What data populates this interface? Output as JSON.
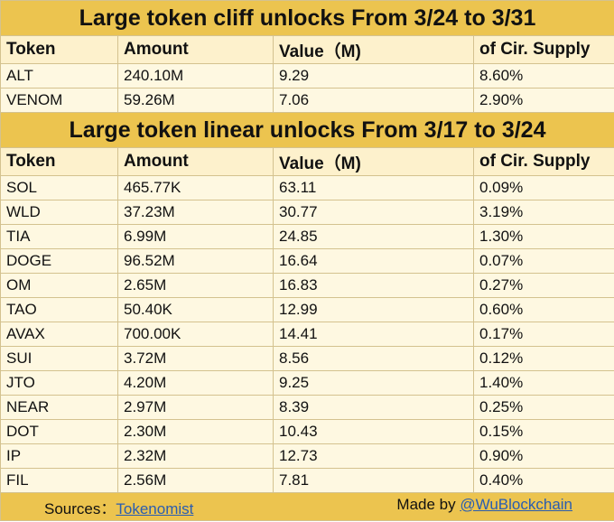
{
  "cliff": {
    "title": "Large token cliff unlocks From  3/24 to 3/31",
    "headers": [
      "Token",
      "Amount",
      "Value（M)",
      "of Cir. Supply"
    ],
    "rows": [
      [
        "ALT",
        "240.10M",
        "9.29",
        "8.60%"
      ],
      [
        "VENOM",
        "59.26M",
        "7.06",
        "2.90%"
      ]
    ]
  },
  "linear": {
    "title": "Large token linear unlocks From  3/17 to 3/24",
    "headers": [
      "Token",
      "Amount",
      "Value（M)",
      "of Cir. Supply"
    ],
    "rows": [
      [
        "SOL",
        "465.77K",
        "63.11",
        "0.09%"
      ],
      [
        "WLD",
        "37.23M",
        "30.77",
        "3.19%"
      ],
      [
        "TIA",
        "6.99M",
        "24.85",
        "1.30%"
      ],
      [
        "DOGE",
        "96.52M",
        "16.64",
        "0.07%"
      ],
      [
        "OM",
        "2.65M",
        "16.83",
        "0.27%"
      ],
      [
        "TAO",
        "50.40K",
        "12.99",
        "0.60%"
      ],
      [
        "AVAX",
        "700.00K",
        "14.41",
        "0.17%"
      ],
      [
        "SUI",
        "3.72M",
        "8.56",
        "0.12%"
      ],
      [
        "JTO",
        "4.20M",
        "9.25",
        "1.40%"
      ],
      [
        "NEAR",
        "2.97M",
        "8.39",
        "0.25%"
      ],
      [
        "DOT",
        "2.30M",
        "10.43",
        "0.15%"
      ],
      [
        "IP",
        "2.32M",
        "12.73",
        "0.90%"
      ],
      [
        "FIL",
        "2.56M",
        "7.81",
        "0.40%"
      ]
    ]
  },
  "footer": {
    "sources_label": "Sources：",
    "sources_link": "Tokenomist",
    "made_by_label": "Made by ",
    "made_by_link": "@WuBlockchain"
  },
  "colors": {
    "title_bg": "#ecc44f",
    "header_bg": "#fdf1cc",
    "row_bg": "#fef8e1",
    "link": "#2a5db0"
  }
}
